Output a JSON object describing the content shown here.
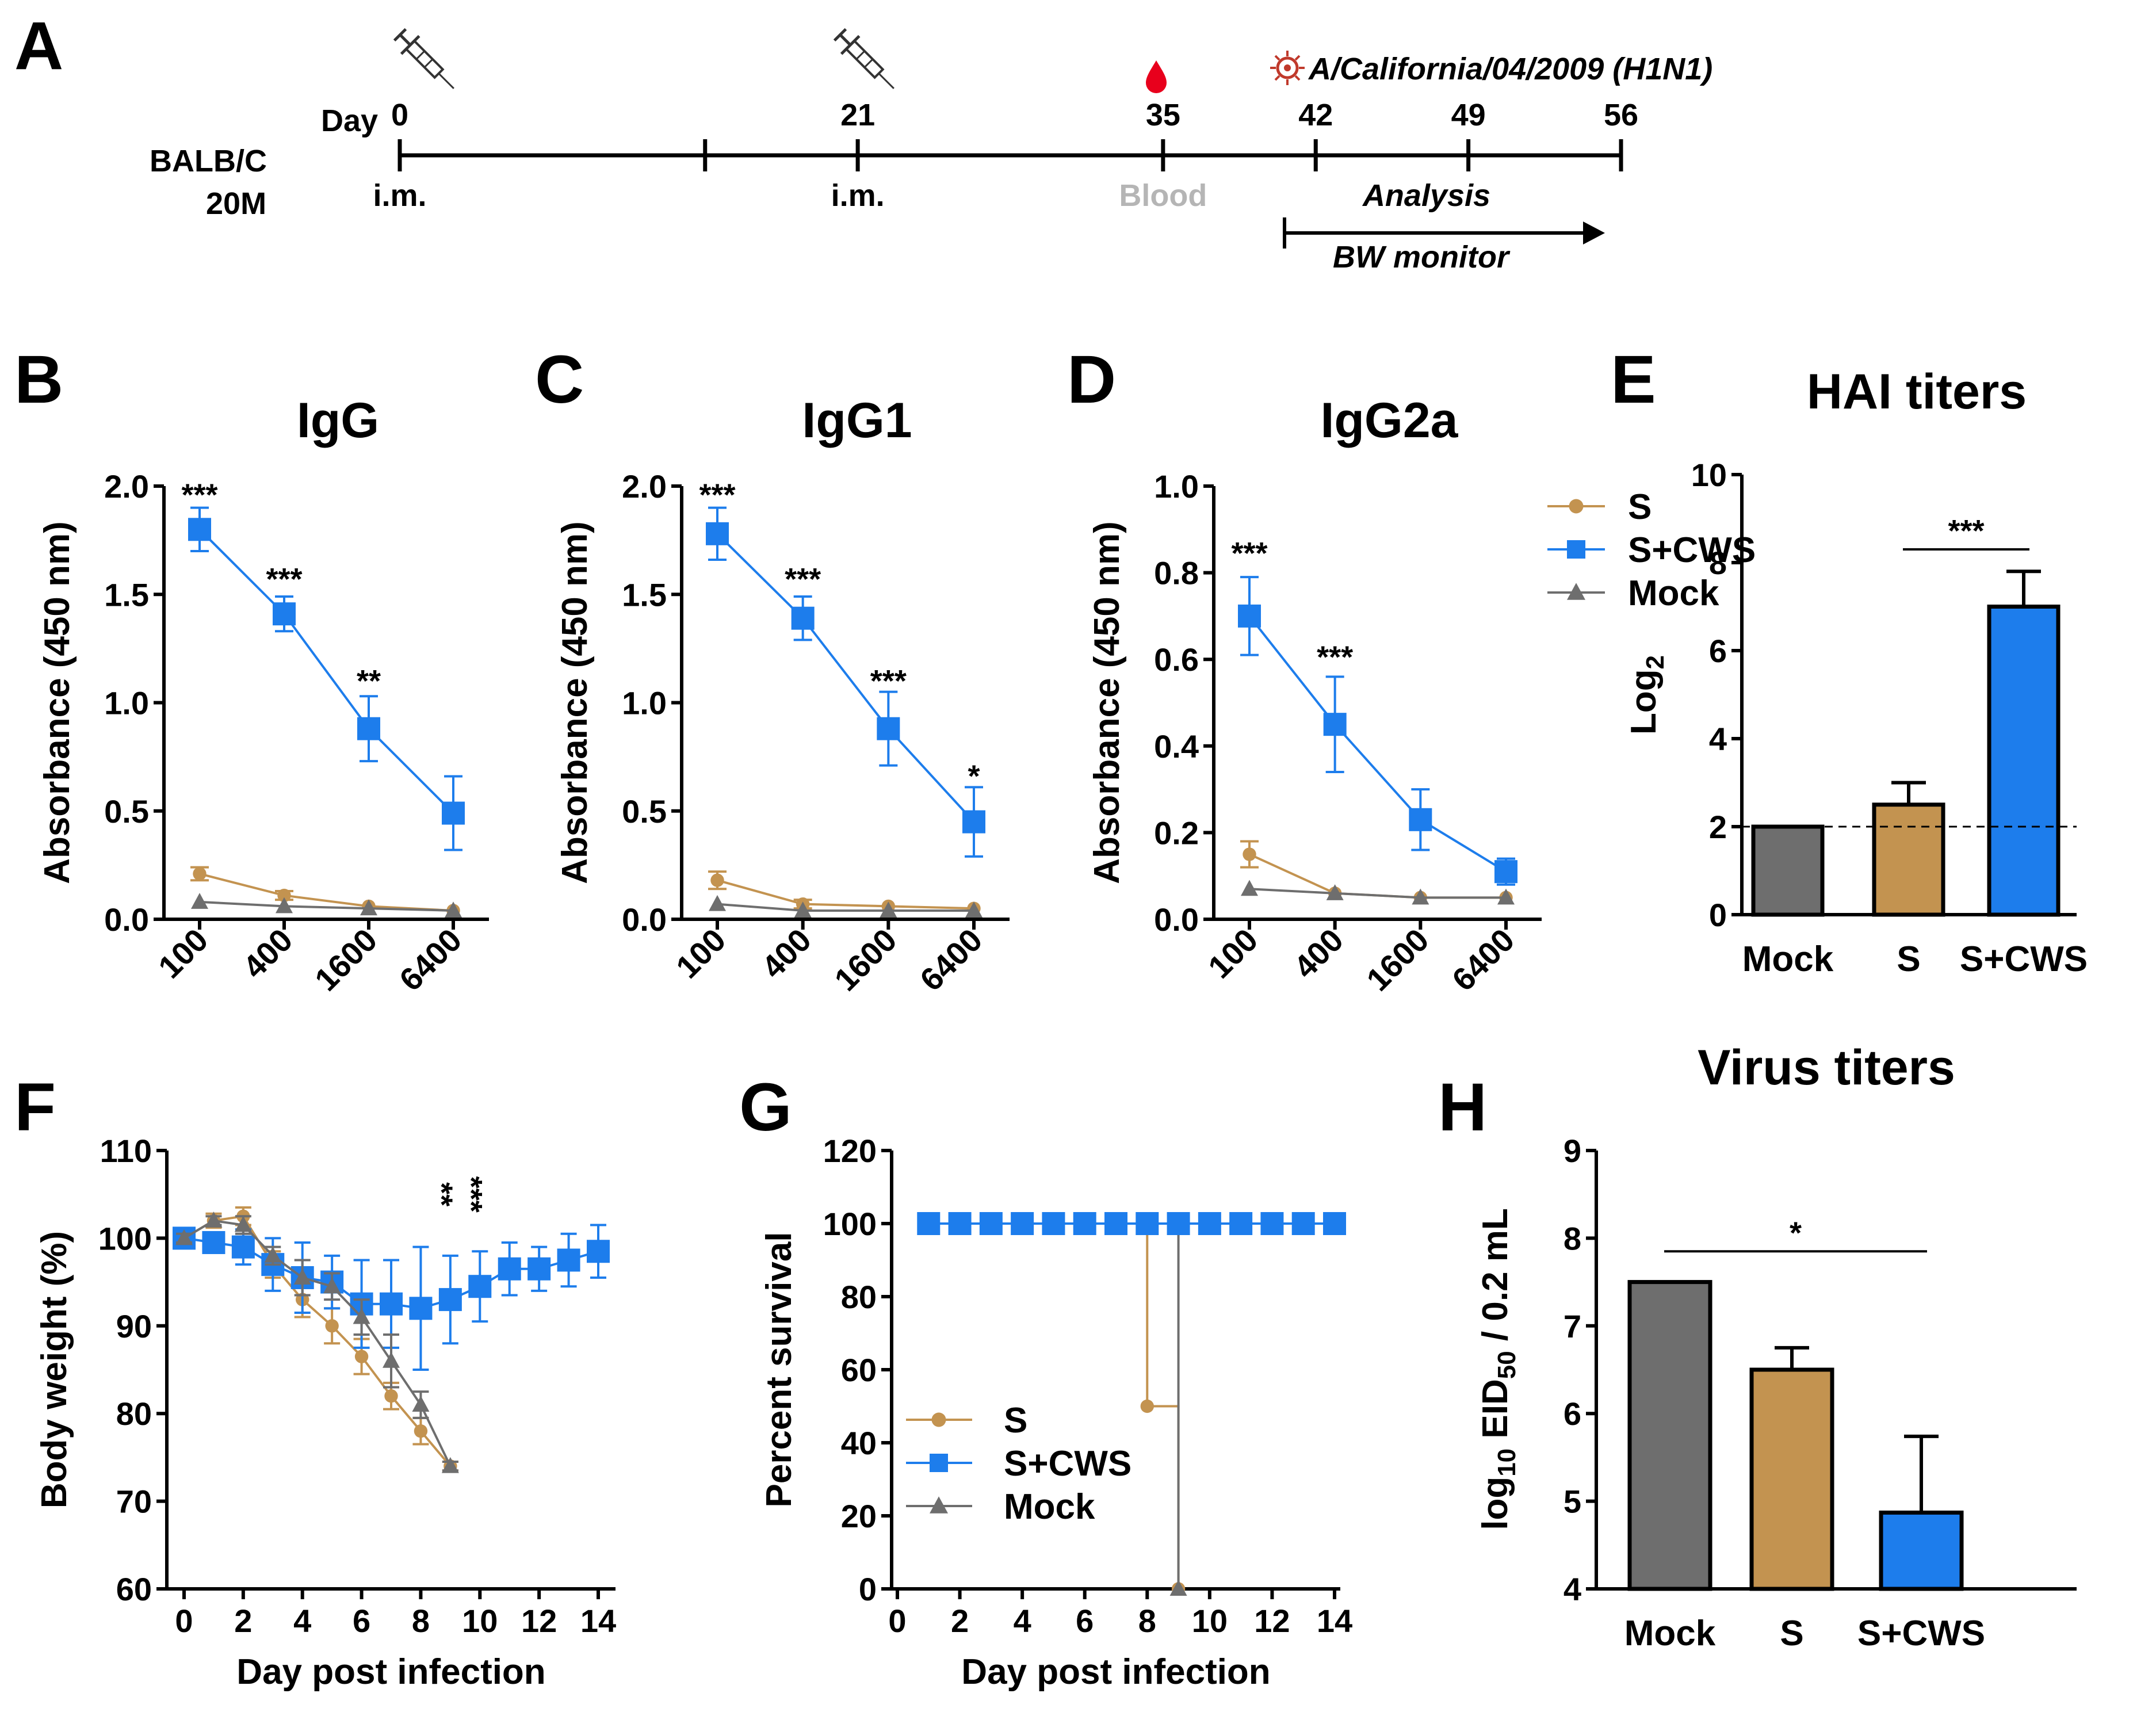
{
  "colors": {
    "S": "#C39350",
    "S+CWS": "#1D7DEC",
    "Mock": "#6E6E6E",
    "axis": "#000000",
    "blood": "#E8001C",
    "blood_text": "#B5B5B5",
    "virus": "#C0392B"
  },
  "panelA": {
    "letter": "A",
    "mouse_strain": "BALB/C",
    "mouse_count": "20M",
    "day_label": "Day",
    "ticks": [
      {
        "day": 0,
        "label": "0",
        "below": "i.m."
      },
      {
        "day": 14,
        "label": "",
        "below": ""
      },
      {
        "day": 21,
        "label": "21",
        "below": "i.m."
      },
      {
        "day": 35,
        "label": "35",
        "below": "Blood"
      },
      {
        "day": 42,
        "label": "42",
        "below": ""
      },
      {
        "day": 49,
        "label": "49",
        "below": ""
      },
      {
        "day": 56,
        "label": "56",
        "below": ""
      }
    ],
    "challenge_strain": "A/California/04/2009 (H1N1)",
    "analysis_label": "Analysis",
    "monitor_label": "BW monitor"
  },
  "legend": [
    {
      "name": "S",
      "marker": "circle"
    },
    {
      "name": "S+CWS",
      "marker": "square"
    },
    {
      "name": "Mock",
      "marker": "triangle"
    }
  ],
  "chart_data": [
    {
      "panel": "B",
      "type": "line",
      "title": "IgG",
      "ylabel": "Absorbance (450 nm)",
      "xlabel": "",
      "categories": [
        "100",
        "400",
        "1600",
        "6400"
      ],
      "ylim": [
        0,
        2.0
      ],
      "yticks": [
        "0.0",
        "0.5",
        "1.0",
        "1.5",
        "2.0"
      ],
      "ytick_values": [
        0,
        0.5,
        1.0,
        1.5,
        2.0
      ],
      "series": [
        {
          "name": "S",
          "values": [
            0.21,
            0.11,
            0.06,
            0.04
          ],
          "errors": [
            0.03,
            0.02,
            0.01,
            0.01
          ]
        },
        {
          "name": "S+CWS",
          "values": [
            1.8,
            1.41,
            0.88,
            0.49
          ],
          "errors": [
            0.1,
            0.08,
            0.15,
            0.17
          ]
        },
        {
          "name": "Mock",
          "values": [
            0.08,
            0.06,
            0.05,
            0.04
          ],
          "errors": [
            0.01,
            0.01,
            0.01,
            0.01
          ]
        }
      ],
      "significance": [
        {
          "index": 0,
          "y": 1.97,
          "label": "***"
        },
        {
          "index": 1,
          "y": 1.58,
          "label": "***"
        },
        {
          "index": 2,
          "y": 1.11,
          "label": "**"
        }
      ]
    },
    {
      "panel": "C",
      "type": "line",
      "title": "IgG1",
      "ylabel": "Absorbance (450 nm)",
      "xlabel": "",
      "categories": [
        "100",
        "400",
        "1600",
        "6400"
      ],
      "ylim": [
        0,
        2.0
      ],
      "yticks": [
        "0.0",
        "0.5",
        "1.0",
        "1.5",
        "2.0"
      ],
      "ytick_values": [
        0,
        0.5,
        1.0,
        1.5,
        2.0
      ],
      "series": [
        {
          "name": "S",
          "values": [
            0.18,
            0.07,
            0.06,
            0.05
          ],
          "errors": [
            0.04,
            0.02,
            0.01,
            0.01
          ]
        },
        {
          "name": "S+CWS",
          "values": [
            1.78,
            1.39,
            0.88,
            0.45
          ],
          "errors": [
            0.12,
            0.1,
            0.17,
            0.16
          ]
        },
        {
          "name": "Mock",
          "values": [
            0.07,
            0.04,
            0.04,
            0.04
          ],
          "errors": [
            0.01,
            0.01,
            0.01,
            0.01
          ]
        }
      ],
      "significance": [
        {
          "index": 0,
          "y": 1.97,
          "label": "***"
        },
        {
          "index": 1,
          "y": 1.58,
          "label": "***"
        },
        {
          "index": 2,
          "y": 1.11,
          "label": "***"
        },
        {
          "index": 3,
          "y": 0.67,
          "label": "*"
        }
      ]
    },
    {
      "panel": "D",
      "type": "line",
      "title": "IgG2a",
      "ylabel": "Absorbance (450 nm)",
      "xlabel": "",
      "categories": [
        "100",
        "400",
        "1600",
        "6400"
      ],
      "ylim": [
        0,
        1.0
      ],
      "yticks": [
        "0.0",
        "0.2",
        "0.4",
        "0.6",
        "0.8",
        "1.0"
      ],
      "ytick_values": [
        0,
        0.2,
        0.4,
        0.6,
        0.8,
        1.0
      ],
      "series": [
        {
          "name": "S",
          "values": [
            0.15,
            0.06,
            0.05,
            0.05
          ],
          "errors": [
            0.03,
            0.01,
            0.01,
            0.01
          ]
        },
        {
          "name": "S+CWS",
          "values": [
            0.7,
            0.45,
            0.23,
            0.11
          ],
          "errors": [
            0.09,
            0.11,
            0.07,
            0.03
          ]
        },
        {
          "name": "Mock",
          "values": [
            0.07,
            0.06,
            0.05,
            0.05
          ],
          "errors": [
            0.01,
            0.01,
            0.01,
            0.01
          ]
        }
      ],
      "significance": [
        {
          "index": 0,
          "y": 0.85,
          "label": "***"
        },
        {
          "index": 1,
          "y": 0.61,
          "label": "***"
        }
      ]
    },
    {
      "panel": "E",
      "type": "bar",
      "title": "HAI titers",
      "ylabel": "Log2",
      "xlabel": "",
      "categories": [
        "Mock",
        "S",
        "S+CWS"
      ],
      "values": [
        2.0,
        2.5,
        7.0
      ],
      "errors": [
        0,
        0.5,
        0.8
      ],
      "ylim": [
        0,
        10
      ],
      "yticks": [
        "0",
        "2",
        "4",
        "6",
        "8",
        "10"
      ],
      "ytick_values": [
        0,
        2,
        4,
        6,
        8,
        10
      ],
      "reference_line": 2,
      "significance": [
        {
          "from": 1,
          "to": 2,
          "y": 8.3,
          "label": "***"
        }
      ]
    },
    {
      "panel": "F",
      "type": "line",
      "title": "",
      "ylabel": "Body weight (%)",
      "xlabel": "Day post infection",
      "xlim": [
        0,
        14
      ],
      "xticks": [
        "0",
        "2",
        "4",
        "6",
        "8",
        "10",
        "12",
        "14"
      ],
      "xtick_values": [
        0,
        2,
        4,
        6,
        8,
        10,
        12,
        14
      ],
      "ylim": [
        60,
        110
      ],
      "yticks": [
        "60",
        "70",
        "80",
        "90",
        "100",
        "110"
      ],
      "ytick_values": [
        60,
        70,
        80,
        90,
        100,
        110
      ],
      "series": [
        {
          "name": "S",
          "x": [
            0,
            1,
            2,
            3,
            4,
            5,
            6,
            7,
            8,
            9
          ],
          "values": [
            100,
            102,
            102.5,
            97,
            93,
            90,
            86.5,
            82,
            78,
            74
          ],
          "errors": [
            0.5,
            0.8,
            1,
            1.5,
            2,
            2,
            2,
            1.5,
            1.5,
            0.5
          ]
        },
        {
          "name": "S+CWS",
          "x": [
            0,
            1,
            2,
            3,
            4,
            5,
            6,
            7,
            8,
            9,
            10,
            11,
            12,
            13,
            14
          ],
          "values": [
            100,
            99.5,
            99,
            97,
            95.5,
            95,
            92.5,
            92.5,
            92,
            93,
            94.5,
            96.5,
            96.5,
            97.5,
            98.5
          ],
          "errors": [
            0.5,
            1,
            2,
            3,
            4,
            3,
            5,
            5,
            7,
            5,
            4,
            3,
            2.5,
            3,
            3
          ]
        },
        {
          "name": "Mock",
          "x": [
            0,
            1,
            2,
            3,
            4,
            5,
            6,
            7,
            8,
            9
          ],
          "values": [
            100,
            102,
            101.5,
            98,
            95.5,
            94.5,
            91,
            86,
            81,
            74
          ],
          "errors": [
            0.5,
            0.5,
            1,
            1,
            2,
            1.5,
            2,
            3,
            1.5,
            0.5
          ]
        }
      ],
      "significance": [
        {
          "x": 8,
          "y": 105,
          "label": "**"
        },
        {
          "x": 9,
          "y": 105,
          "label": "***"
        }
      ]
    },
    {
      "panel": "G",
      "type": "line",
      "title": "",
      "ylabel": "Percent survival",
      "xlabel": "Day post infection",
      "xlim": [
        0,
        14
      ],
      "xticks": [
        "0",
        "2",
        "4",
        "6",
        "8",
        "10",
        "12",
        "14"
      ],
      "xtick_values": [
        0,
        2,
        4,
        6,
        8,
        10,
        12,
        14
      ],
      "ylim": [
        0,
        120
      ],
      "yticks": [
        "0",
        "20",
        "40",
        "60",
        "80",
        "100",
        "120"
      ],
      "ytick_values": [
        0,
        20,
        40,
        60,
        80,
        100,
        120
      ],
      "series": [
        {
          "name": "S",
          "x": [
            1,
            2,
            3,
            4,
            5,
            6,
            7,
            8,
            9
          ],
          "values": [
            100,
            100,
            100,
            100,
            100,
            100,
            100,
            50,
            0
          ]
        },
        {
          "name": "S+CWS",
          "x": [
            1,
            2,
            3,
            4,
            5,
            6,
            7,
            8,
            9,
            10,
            11,
            12,
            13,
            14
          ],
          "values": [
            100,
            100,
            100,
            100,
            100,
            100,
            100,
            100,
            100,
            100,
            100,
            100,
            100,
            100
          ]
        },
        {
          "name": "Mock",
          "x": [
            1,
            2,
            3,
            4,
            5,
            6,
            7,
            8,
            9
          ],
          "values": [
            100,
            100,
            100,
            100,
            100,
            100,
            100,
            100,
            0
          ]
        }
      ]
    },
    {
      "panel": "H",
      "type": "bar",
      "title": "Virus titers",
      "ylabel": "log10 EID50 / 0.2 mL",
      "xlabel": "",
      "categories": [
        "Mock",
        "S",
        "S+CWS"
      ],
      "values": [
        7.5,
        6.5,
        4.87
      ],
      "errors": [
        0,
        0.25,
        0.87
      ],
      "ylim": [
        4,
        9
      ],
      "yticks": [
        "4",
        "5",
        "6",
        "7",
        "8",
        "9"
      ],
      "ytick_values": [
        4,
        5,
        6,
        7,
        8,
        9
      ],
      "significance": [
        {
          "from": 0,
          "to": 2,
          "y": 7.85,
          "label": "*"
        }
      ]
    }
  ]
}
